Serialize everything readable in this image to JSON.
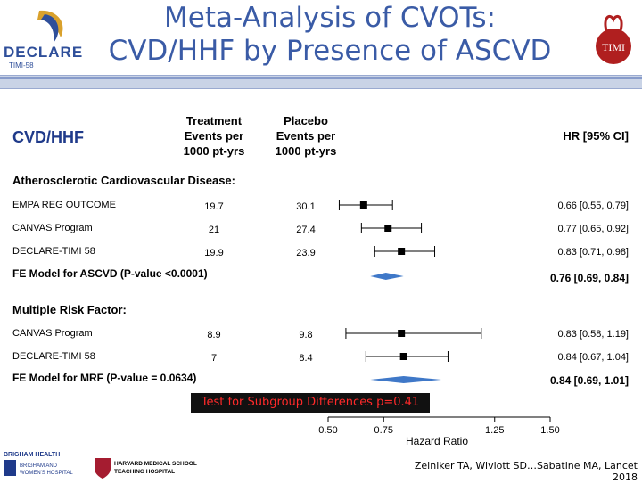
{
  "header": {
    "title_line1": "Meta-Analysis of CVOTs:",
    "title_line2": "CVD/HHF by Presence of ASCVD"
  },
  "logos": {
    "declare": "DECLARE",
    "declare_sub": "TIMI-58",
    "timi": "TIMI",
    "brigham": [
      "BRIGHAM HEALTH",
      "BRIGHAM AND",
      "WOMEN'S HOSPITAL"
    ],
    "harvard": [
      "HARVARD MEDICAL SCHOOL",
      "TEACHING HOSPITAL"
    ]
  },
  "table": {
    "section_label": "CVD/HHF",
    "col_treatment": [
      "Treatment",
      "Events per",
      "1000 pt-yrs"
    ],
    "col_placebo": [
      "Placebo",
      "Events per",
      "1000 pt-yrs"
    ],
    "col_hr": "HR [95% CI]"
  },
  "chart_data": {
    "type": "forest",
    "xlabel": "Hazard Ratio",
    "x_ticks": [
      0.5,
      0.75,
      1.25,
      1.5
    ],
    "x_tick_labels": [
      "0.50",
      "0.75",
      "1.25",
      "1.50"
    ],
    "x_range": [
      0.5,
      1.5
    ],
    "reference_line": 1.0,
    "groups": [
      {
        "label": "Atherosclerotic Cardiovascular Disease:",
        "studies": [
          {
            "name": "EMPA REG OUTCOME",
            "treatment": "19.7",
            "placebo": "30.1",
            "hr": 0.66,
            "lo": 0.55,
            "hi": 0.79,
            "hr_text": "0.66 [0.55, 0.79]"
          },
          {
            "name": "CANVAS Program",
            "treatment": "21",
            "placebo": "27.4",
            "hr": 0.77,
            "lo": 0.65,
            "hi": 0.92,
            "hr_text": "0.77 [0.65, 0.92]"
          },
          {
            "name": "DECLARE-TIMI 58",
            "treatment": "19.9",
            "placebo": "23.9",
            "hr": 0.83,
            "lo": 0.71,
            "hi": 0.98,
            "hr_text": "0.83 [0.71, 0.98]"
          }
        ],
        "pooled": {
          "label": "FE Model for ASCVD (P-value <0.0001)",
          "hr": 0.76,
          "lo": 0.69,
          "hi": 0.84,
          "hr_text": "0.76 [0.69, 0.84]"
        }
      },
      {
        "label": "Multiple Risk Factor:",
        "studies": [
          {
            "name": "CANVAS Program",
            "treatment": "8.9",
            "placebo": "9.8",
            "hr": 0.83,
            "lo": 0.58,
            "hi": 1.19,
            "hr_text": "0.83 [0.58, 1.19]"
          },
          {
            "name": "DECLARE-TIMI 58",
            "treatment": "7",
            "placebo": "8.4",
            "hr": 0.84,
            "lo": 0.67,
            "hi": 1.04,
            "hr_text": "0.84 [0.67, 1.04]"
          }
        ],
        "pooled": {
          "label": "FE Model for MRF (P-value = 0.0634)",
          "hr": 0.84,
          "lo": 0.69,
          "hi": 1.01,
          "hr_text": "0.84 [0.69, 1.01]"
        }
      }
    ],
    "annotation": "Test for Subgroup Differences p=0.41"
  },
  "citation": "Zelniker TA, Wiviott SD…Sabatine MA, Lancet 2018",
  "colors": {
    "title": "#3a5ba6",
    "diamond": "#3f78c8",
    "marker": "#000000",
    "annotation_text": "#ff2a2a"
  }
}
